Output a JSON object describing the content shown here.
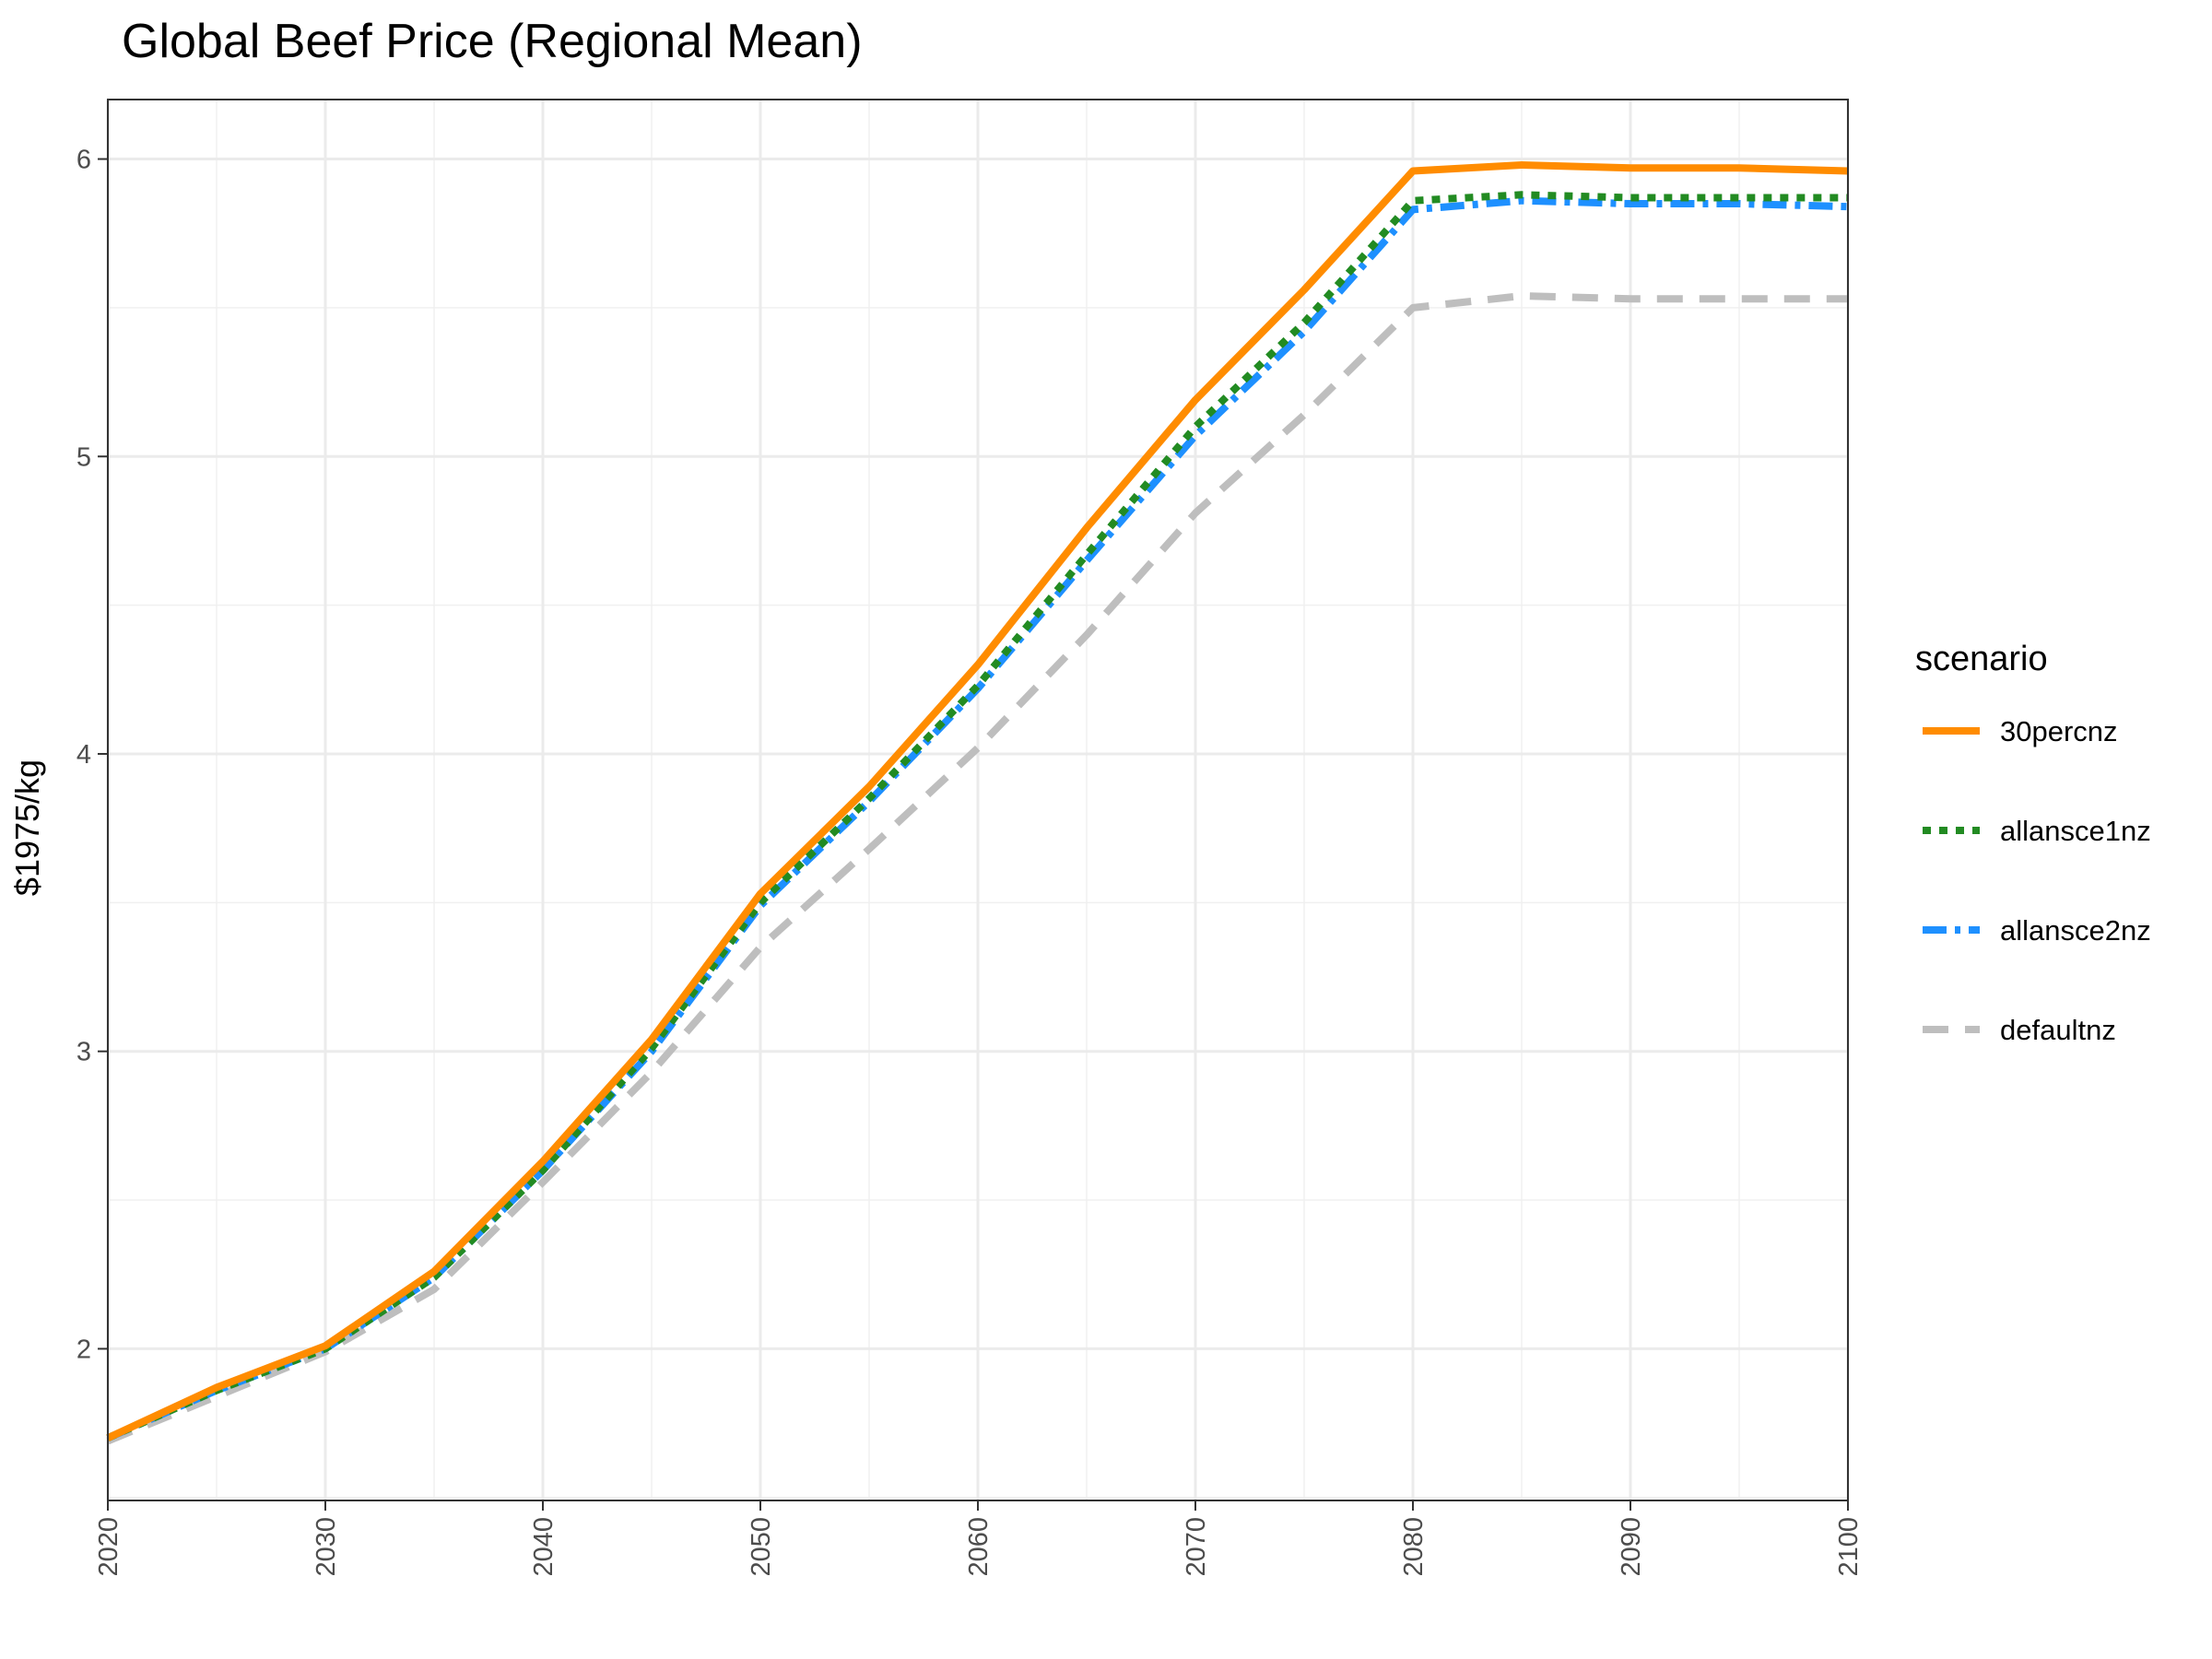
{
  "chart_data": {
    "type": "line",
    "title": "Global Beef Price (Regional Mean)",
    "xlabel": "",
    "ylabel": "$1975/kg",
    "x": [
      2020,
      2025,
      2030,
      2035,
      2040,
      2045,
      2050,
      2055,
      2060,
      2065,
      2070,
      2075,
      2080,
      2085,
      2090,
      2095,
      2100
    ],
    "xlim": [
      2020,
      2100
    ],
    "ylim": [
      1.49,
      6.2
    ],
    "x_ticks": [
      "2020",
      "2030",
      "2040",
      "2050",
      "2060",
      "2070",
      "2080",
      "2090",
      "2100"
    ],
    "y_ticks": [
      "2",
      "3",
      "4",
      "5",
      "6"
    ],
    "grid": true,
    "legend_position": "right",
    "legend_title": "scenario",
    "series": [
      {
        "name": "30percnz",
        "color": "#ff8c00",
        "dash": "solid",
        "values": [
          1.7,
          1.87,
          2.01,
          2.26,
          2.63,
          3.04,
          3.53,
          3.89,
          4.3,
          4.76,
          5.19,
          5.56,
          5.96,
          5.98,
          5.97,
          5.97,
          5.96
        ]
      },
      {
        "name": "allansce1nz",
        "color": "#228b22",
        "dash": "dotted",
        "values": [
          1.7,
          1.86,
          2.0,
          2.24,
          2.6,
          3.01,
          3.5,
          3.85,
          4.23,
          4.67,
          5.1,
          5.45,
          5.86,
          5.88,
          5.87,
          5.87,
          5.87
        ]
      },
      {
        "name": "allansce2nz",
        "color": "#1e90ff",
        "dash": "dashdot",
        "values": [
          1.7,
          1.86,
          2.0,
          2.24,
          2.6,
          3.0,
          3.49,
          3.84,
          4.22,
          4.65,
          5.07,
          5.42,
          5.83,
          5.86,
          5.85,
          5.85,
          5.84
        ]
      },
      {
        "name": "defaultnz",
        "color": "#bebebe",
        "dash": "dashed",
        "values": [
          1.69,
          1.84,
          1.99,
          2.2,
          2.56,
          2.93,
          3.35,
          3.68,
          4.02,
          4.4,
          4.81,
          5.14,
          5.5,
          5.54,
          5.53,
          5.53,
          5.53
        ]
      }
    ]
  }
}
